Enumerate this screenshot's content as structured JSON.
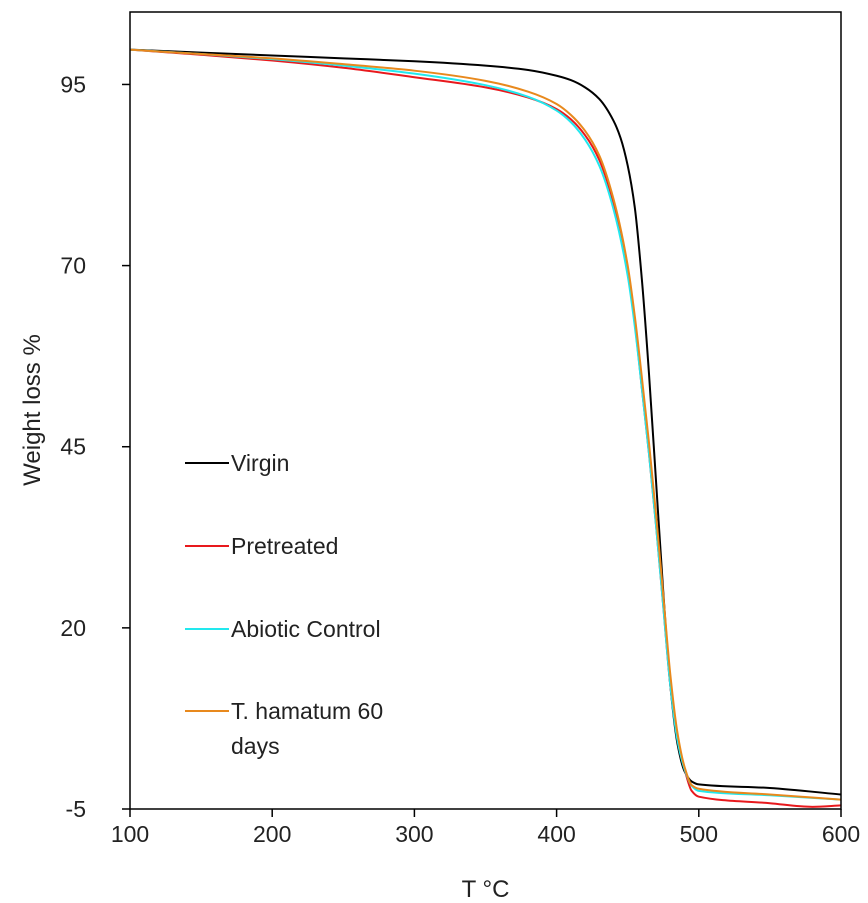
{
  "chart_data": {
    "type": "line",
    "title": "",
    "xlabel": "T °C",
    "ylabel": "Weight loss %",
    "xlim": [
      100,
      600
    ],
    "ylim": [
      -5,
      105
    ],
    "xticks": [
      100,
      200,
      300,
      400,
      500,
      600
    ],
    "yticks": [
      -5,
      20,
      45,
      70,
      95
    ],
    "grid": false,
    "legend_position": "left-center",
    "series": [
      {
        "name": "Virgin",
        "color": "#000000",
        "x": [
          100,
          150,
          200,
          250,
          300,
          350,
          380,
          400,
          410,
          420,
          430,
          440,
          445,
          450,
          455,
          460,
          465,
          470,
          475,
          480,
          485,
          490,
          495,
          500,
          550,
          600
        ],
        "y": [
          99.8,
          99.4,
          99.0,
          98.6,
          98.2,
          97.6,
          97.0,
          96.2,
          95.6,
          94.6,
          93.0,
          90.0,
          87.6,
          83.8,
          78.0,
          68.0,
          55.0,
          40.0,
          25.0,
          12.0,
          4.0,
          0.2,
          -1.2,
          -1.6,
          -2.1,
          -3.0
        ]
      },
      {
        "name": "Pretreated",
        "color": "#e8191d",
        "x": [
          100,
          150,
          200,
          250,
          300,
          350,
          380,
          400,
          410,
          420,
          430,
          440,
          450,
          455,
          460,
          465,
          470,
          475,
          480,
          485,
          490,
          495,
          500,
          550,
          580,
          600
        ],
        "y": [
          99.8,
          99.1,
          98.3,
          97.3,
          96.0,
          94.6,
          93.2,
          91.6,
          90.2,
          88.0,
          84.6,
          78.6,
          69.0,
          62.0,
          53.0,
          44.0,
          34.0,
          23.0,
          12.0,
          5.0,
          0.5,
          -2.5,
          -3.3,
          -4.2,
          -4.7,
          -4.5
        ]
      },
      {
        "name": "Abiotic Control",
        "color": "#22e8ee",
        "x": [
          100,
          150,
          200,
          250,
          300,
          350,
          380,
          400,
          410,
          420,
          430,
          440,
          450,
          455,
          460,
          465,
          470,
          475,
          480,
          485,
          490,
          495,
          500,
          550,
          600
        ],
        "y": [
          99.8,
          99.2,
          98.5,
          97.6,
          96.5,
          94.9,
          93.3,
          91.4,
          89.8,
          87.4,
          83.8,
          77.8,
          68.6,
          61.6,
          53.0,
          44.0,
          34.0,
          23.0,
          12.0,
          4.5,
          0.5,
          -1.8,
          -2.5,
          -3.1,
          -3.7
        ]
      },
      {
        "name": "T. hamatum 60 days",
        "color": "#e8891d",
        "x": [
          100,
          150,
          200,
          250,
          300,
          350,
          380,
          400,
          410,
          420,
          430,
          440,
          450,
          455,
          460,
          465,
          470,
          475,
          480,
          485,
          490,
          495,
          500,
          550,
          600
        ],
        "y": [
          99.8,
          99.2,
          98.6,
          97.8,
          96.9,
          95.5,
          94.0,
          92.3,
          90.8,
          88.6,
          85.2,
          79.2,
          70.0,
          63.0,
          54.5,
          45.5,
          35.5,
          24.5,
          13.5,
          5.5,
          0.8,
          -1.7,
          -2.2,
          -3.0,
          -3.7
        ]
      }
    ]
  }
}
